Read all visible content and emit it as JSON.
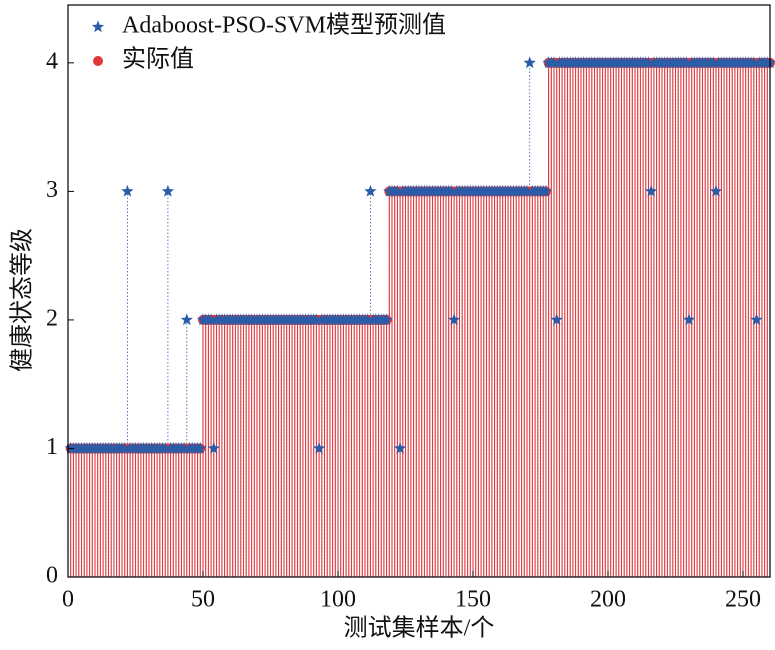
{
  "chart_data": {
    "type": "stem",
    "xlabel": "测试集样本/个",
    "ylabel": "健康状态等级",
    "xlim": [
      0,
      260
    ],
    "ylim": [
      0,
      4.45
    ],
    "xticks": [
      0,
      50,
      100,
      150,
      200,
      250
    ],
    "yticks": [
      0,
      1,
      2,
      3,
      4
    ],
    "legend": "upper left",
    "x": [
      1,
      2,
      3,
      4,
      5,
      6,
      7,
      8,
      9,
      10,
      11,
      12,
      13,
      14,
      15,
      16,
      17,
      18,
      19,
      20,
      21,
      22,
      23,
      24,
      25,
      26,
      27,
      28,
      29,
      30,
      31,
      32,
      33,
      34,
      35,
      36,
      37,
      38,
      39,
      40,
      41,
      42,
      43,
      44,
      45,
      46,
      47,
      48,
      49,
      50,
      51,
      52,
      53,
      54,
      55,
      56,
      57,
      58,
      59,
      60,
      61,
      62,
      63,
      64,
      65,
      66,
      67,
      68,
      69,
      70,
      71,
      72,
      73,
      74,
      75,
      76,
      77,
      78,
      79,
      80,
      81,
      82,
      83,
      84,
      85,
      86,
      87,
      88,
      89,
      90,
      91,
      92,
      93,
      94,
      95,
      96,
      97,
      98,
      99,
      100,
      101,
      102,
      103,
      104,
      105,
      106,
      107,
      108,
      109,
      110,
      111,
      112,
      113,
      114,
      115,
      116,
      117,
      118,
      119,
      120,
      121,
      122,
      123,
      124,
      125,
      126,
      127,
      128,
      129,
      130,
      131,
      132,
      133,
      134,
      135,
      136,
      137,
      138,
      139,
      140,
      141,
      142,
      143,
      144,
      145,
      146,
      147,
      148,
      149,
      150,
      151,
      152,
      153,
      154,
      155,
      156,
      157,
      158,
      159,
      160,
      161,
      162,
      163,
      164,
      165,
      166,
      167,
      168,
      169,
      170,
      171,
      172,
      173,
      174,
      175,
      176,
      177,
      178,
      179,
      180,
      181,
      182,
      183,
      184,
      185,
      186,
      187,
      188,
      189,
      190,
      191,
      192,
      193,
      194,
      195,
      196,
      197,
      198,
      199,
      200,
      201,
      202,
      203,
      204,
      205,
      206,
      207,
      208,
      209,
      210,
      211,
      212,
      213,
      214,
      215,
      216,
      217,
      218,
      219,
      220,
      221,
      222,
      223,
      224,
      225,
      226,
      227,
      228,
      229,
      230,
      231,
      232,
      233,
      234,
      235,
      236,
      237,
      238,
      239,
      240,
      241,
      242,
      243,
      244,
      245,
      246,
      247,
      248,
      249,
      250,
      251,
      252,
      253,
      254,
      255,
      256,
      257,
      258,
      259,
      260
    ],
    "series": [
      {
        "name": "Adaboost-PSO-SVM模型预测值",
        "color": "#2b5ca8",
        "marker": "star",
        "values": [
          1,
          1,
          1,
          1,
          1,
          1,
          1,
          1,
          1,
          1,
          1,
          1,
          1,
          1,
          1,
          1,
          1,
          1,
          1,
          1,
          1,
          3,
          1,
          1,
          1,
          1,
          1,
          1,
          1,
          1,
          1,
          1,
          1,
          1,
          1,
          1,
          3,
          1,
          1,
          1,
          1,
          1,
          1,
          2,
          1,
          1,
          1,
          1,
          1,
          2,
          2,
          2,
          2,
          1,
          2,
          2,
          2,
          2,
          2,
          2,
          2,
          2,
          2,
          2,
          2,
          2,
          2,
          2,
          2,
          2,
          2,
          2,
          2,
          2,
          2,
          2,
          2,
          2,
          2,
          2,
          2,
          2,
          2,
          2,
          2,
          2,
          2,
          2,
          2,
          2,
          2,
          2,
          1,
          2,
          2,
          2,
          2,
          2,
          2,
          2,
          2,
          2,
          2,
          2,
          2,
          2,
          2,
          2,
          2,
          2,
          2,
          3,
          2,
          2,
          2,
          2,
          2,
          2,
          3,
          3,
          3,
          3,
          1,
          3,
          3,
          3,
          3,
          3,
          3,
          3,
          3,
          3,
          3,
          3,
          3,
          3,
          3,
          3,
          3,
          3,
          3,
          3,
          2,
          3,
          3,
          3,
          3,
          3,
          3,
          3,
          3,
          3,
          3,
          3,
          3,
          3,
          3,
          3,
          3,
          3,
          3,
          3,
          3,
          3,
          3,
          3,
          3,
          3,
          3,
          3,
          4,
          3,
          3,
          3,
          3,
          3,
          3,
          4,
          4,
          4,
          2,
          4,
          4,
          4,
          4,
          4,
          4,
          4,
          4,
          4,
          4,
          4,
          4,
          4,
          4,
          4,
          4,
          4,
          4,
          4,
          4,
          4,
          4,
          4,
          4,
          4,
          4,
          4,
          4,
          4,
          4,
          4,
          4,
          4,
          4,
          3,
          4,
          4,
          4,
          4,
          4,
          4,
          4,
          4,
          4,
          4,
          4,
          4,
          4,
          2,
          4,
          4,
          4,
          4,
          4,
          4,
          4,
          4,
          4,
          3,
          4,
          4,
          4,
          4,
          4,
          4,
          4,
          4,
          4,
          4,
          4,
          4,
          4,
          4,
          2,
          4,
          4,
          4,
          4,
          4
        ]
      },
      {
        "name": "实际值",
        "color": "#e0373a",
        "marker": "circle",
        "values": [
          1,
          1,
          1,
          1,
          1,
          1,
          1,
          1,
          1,
          1,
          1,
          1,
          1,
          1,
          1,
          1,
          1,
          1,
          1,
          1,
          1,
          1,
          1,
          1,
          1,
          1,
          1,
          1,
          1,
          1,
          1,
          1,
          1,
          1,
          1,
          1,
          1,
          1,
          1,
          1,
          1,
          1,
          1,
          1,
          1,
          1,
          1,
          1,
          1,
          2,
          2,
          2,
          2,
          2,
          2,
          2,
          2,
          2,
          2,
          2,
          2,
          2,
          2,
          2,
          2,
          2,
          2,
          2,
          2,
          2,
          2,
          2,
          2,
          2,
          2,
          2,
          2,
          2,
          2,
          2,
          2,
          2,
          2,
          2,
          2,
          2,
          2,
          2,
          2,
          2,
          2,
          2,
          2,
          2,
          2,
          2,
          2,
          2,
          2,
          2,
          2,
          2,
          2,
          2,
          2,
          2,
          2,
          2,
          2,
          2,
          2,
          2,
          2,
          2,
          2,
          2,
          2,
          2,
          3,
          3,
          3,
          3,
          3,
          3,
          3,
          3,
          3,
          3,
          3,
          3,
          3,
          3,
          3,
          3,
          3,
          3,
          3,
          3,
          3,
          3,
          3,
          3,
          3,
          3,
          3,
          3,
          3,
          3,
          3,
          3,
          3,
          3,
          3,
          3,
          3,
          3,
          3,
          3,
          3,
          3,
          3,
          3,
          3,
          3,
          3,
          3,
          3,
          3,
          3,
          3,
          3,
          3,
          3,
          3,
          3,
          3,
          3,
          4,
          4,
          4,
          4,
          4,
          4,
          4,
          4,
          4,
          4,
          4,
          4,
          4,
          4,
          4,
          4,
          4,
          4,
          4,
          4,
          4,
          4,
          4,
          4,
          4,
          4,
          4,
          4,
          4,
          4,
          4,
          4,
          4,
          4,
          4,
          4,
          4,
          4,
          4,
          4,
          4,
          4,
          4,
          4,
          4,
          4,
          4,
          4,
          4,
          4,
          4,
          4,
          4,
          4,
          4,
          4,
          4,
          4,
          4,
          4,
          4,
          4,
          4,
          4,
          4,
          4,
          4,
          4,
          4,
          4,
          4,
          4,
          4,
          4,
          4,
          4,
          4,
          4,
          4,
          4,
          4,
          4,
          4
        ]
      }
    ]
  }
}
